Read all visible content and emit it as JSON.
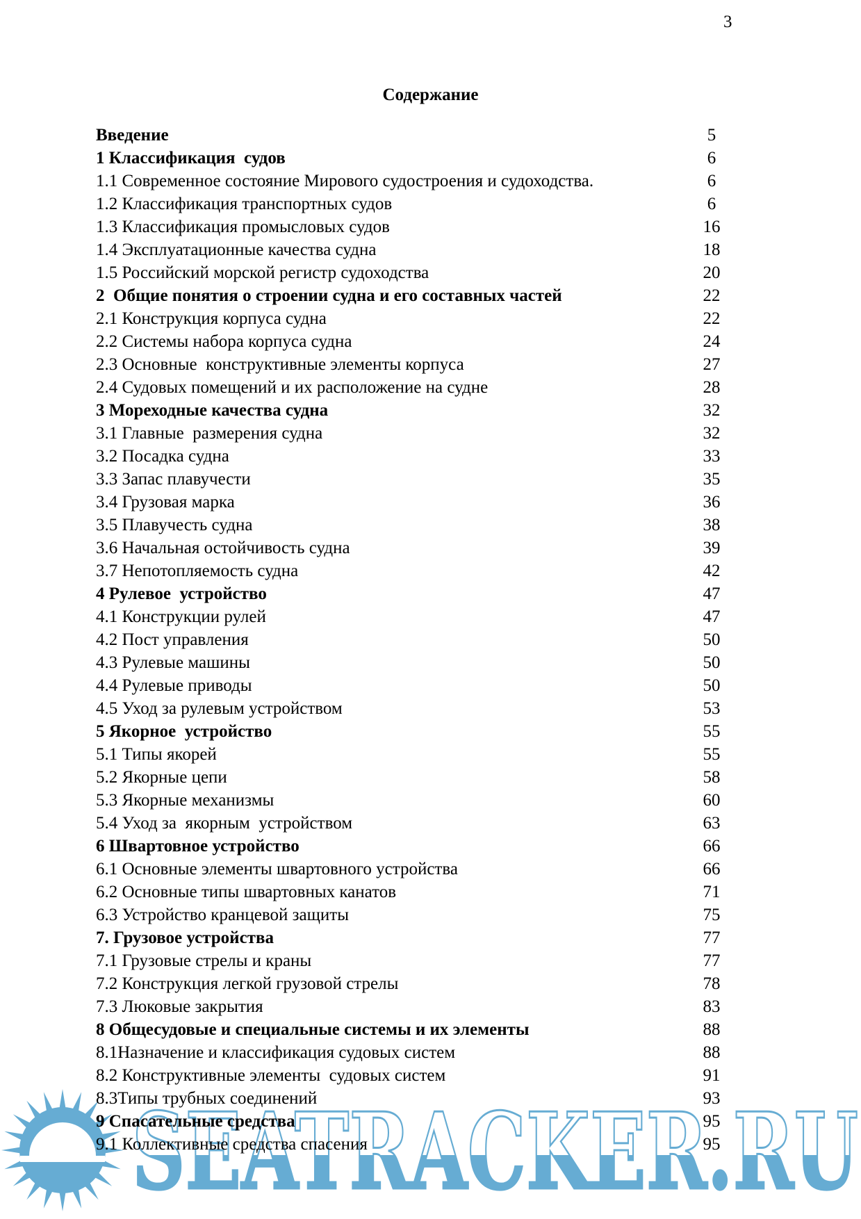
{
  "page": {
    "number": "3",
    "title": "Содержание"
  },
  "toc": {
    "entries": [
      {
        "label": "Введение",
        "page": "5",
        "bold": true
      },
      {
        "label": "1 Классификация  судов",
        "page": "6",
        "bold": true
      },
      {
        "label": "1.1 Современное состояние Мирового судостроения и судоходства.",
        "page": "6",
        "bold": false
      },
      {
        "label": "1.2 Классификация транспортных судов",
        "page": "6",
        "bold": false
      },
      {
        "label": "1.3 Классификация промысловых судов",
        "page": "16",
        "bold": false
      },
      {
        "label": "1.4 Эксплуатационные качества судна",
        "page": "18",
        "bold": false
      },
      {
        "label": "1.5 Российский морской регистр судоходства",
        "page": "20",
        "bold": false
      },
      {
        "label": "2  Общие понятия о строении судна и его составных частей",
        "page": "22",
        "bold": true
      },
      {
        "label": "2.1 Конструкция корпуса судна",
        "page": "22",
        "bold": false
      },
      {
        "label": "2.2 Системы набора корпуса судна",
        "page": "24",
        "bold": false
      },
      {
        "label": "2.3 Основные  конструктивные элементы корпуса",
        "page": "27",
        "bold": false
      },
      {
        "label": "2.4 Судовых помещений и их расположение на судне",
        "page": "28",
        "bold": false
      },
      {
        "label": "3 Мореходные качества судна",
        "page": "32",
        "bold": true
      },
      {
        "label": "3.1 Главные  размерения судна",
        "page": "32",
        "bold": false
      },
      {
        "label": "3.2 Посадка судна",
        "page": "33",
        "bold": false
      },
      {
        "label": "3.3 Запас плавучести",
        "page": "35",
        "bold": false
      },
      {
        "label": "3.4 Грузовая марка",
        "page": "36",
        "bold": false
      },
      {
        "label": "3.5 Плавучесть судна",
        "page": "38",
        "bold": false
      },
      {
        "label": "3.6 Начальная остойчивость судна",
        "page": "39",
        "bold": false
      },
      {
        "label": "3.7 Непотопляемость судна",
        "page": "42",
        "bold": false
      },
      {
        "label": "4 Рулевое  устройство",
        "page": "47",
        "bold": true
      },
      {
        "label": "4.1 Конструкции рулей",
        "page": "47",
        "bold": false
      },
      {
        "label": "4.2 Пост управления",
        "page": "50",
        "bold": false
      },
      {
        "label": "4.3 Рулевые машины",
        "page": "50",
        "bold": false
      },
      {
        "label": "4.4 Рулевые приводы",
        "page": "50",
        "bold": false
      },
      {
        "label": "4.5 Уход за рулевым устройством",
        "page": "53",
        "bold": false
      },
      {
        "label": "5 Якорное  устройство",
        "page": "55",
        "bold": true
      },
      {
        "label": "5.1 Типы якорей",
        "page": "55",
        "bold": false
      },
      {
        "label": "5.2 Якорные цепи",
        "page": "58",
        "bold": false
      },
      {
        "label": "5.3 Якорные механизмы",
        "page": "60",
        "bold": false
      },
      {
        "label": "5.4 Уход за  якорным  устройством",
        "page": "63",
        "bold": false
      },
      {
        "label": "6 Швартовное устройство",
        "page": "66",
        "bold": true
      },
      {
        "label": "6.1 Основные элементы швартовного устройства",
        "page": "66",
        "bold": false
      },
      {
        "label": "6.2 Основные типы швартовных канатов",
        "page": "71",
        "bold": false
      },
      {
        "label": "6.3 Устройство кранцевой защиты",
        "page": "75",
        "bold": false
      },
      {
        "label": "7. Грузовое устройства",
        "page": "77",
        "bold": true
      },
      {
        "label": "7.1 Грузовые стрелы и краны",
        "page": "77",
        "bold": false
      },
      {
        "label": "7.2 Конструкция легкой грузовой стрелы",
        "page": "78",
        "bold": false
      },
      {
        "label": "7.3 Люковые закрытия",
        "page": "83",
        "bold": false
      },
      {
        "label": "8 Общесудовые и специальные системы и их элементы",
        "page": "88",
        "bold": true
      },
      {
        "label": "8.1Назначение и классификация судовых систем",
        "page": "88",
        "bold": false
      },
      {
        "label": "8.2 Конструктивные элементы  судовых систем",
        "page": "91",
        "bold": false
      },
      {
        "label": "8.3Типы трубных соединений",
        "page": "93",
        "bold": false
      },
      {
        "label": "9 Спасательные средства",
        "page": "95",
        "bold": true
      },
      {
        "label": "9.1 Коллективные средства спасения",
        "page": "95",
        "bold": false
      }
    ]
  },
  "watermark": {
    "text": "SEATRACKER.RU",
    "color": "#5ea8d1",
    "logo_icon": "sun-over-sea"
  }
}
